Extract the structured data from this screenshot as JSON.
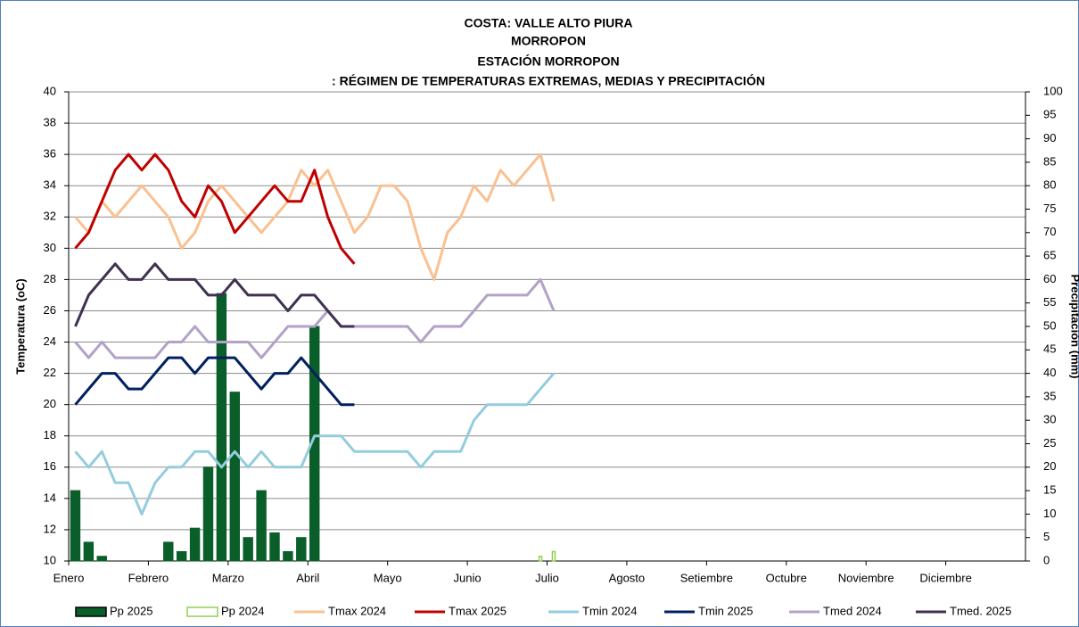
{
  "chart_data": {
    "type": "combo",
    "title": [
      "COSTA: VALLE ALTO PIURA",
      "MORROPON",
      "ESTACIÓN MORROPON",
      ": RÉGIMEN DE TEMPERATURAS EXTREMAS, MEDIAS Y PRECIPITACIÓN"
    ],
    "y_label": "Temperatura (oC)",
    "y2_label": "Precipitación (mm)",
    "categories": [
      "Enero",
      null,
      null,
      null,
      null,
      null,
      "Febrero",
      null,
      null,
      null,
      null,
      null,
      "Marzo",
      null,
      null,
      null,
      null,
      null,
      "Abril",
      null,
      null,
      null,
      null,
      null,
      "Mayo",
      null,
      null,
      null,
      null,
      null,
      "Junio",
      null,
      null,
      null,
      null,
      null,
      "Julio",
      null,
      null,
      null,
      null,
      null,
      "Agosto",
      null,
      null,
      null,
      null,
      null,
      "Setiembre",
      null,
      null,
      null,
      null,
      null,
      "Octubre",
      null,
      null,
      null,
      null,
      null,
      "Noviembre",
      null,
      null,
      null,
      null,
      null,
      "Diciembre",
      null,
      null,
      null,
      null,
      null
    ],
    "ylim": [
      10,
      40
    ],
    "yticks": [
      10,
      12,
      14,
      16,
      18,
      20,
      22,
      24,
      26,
      28,
      30,
      32,
      34,
      36,
      38,
      40
    ],
    "y2lim": [
      0,
      100
    ],
    "y2ticks": [
      0,
      5,
      10,
      15,
      20,
      25,
      30,
      35,
      40,
      45,
      50,
      55,
      60,
      65,
      70,
      75,
      80,
      85,
      90,
      95,
      100
    ],
    "grid": true,
    "series": [
      {
        "name": "Pp 2025",
        "kind": "bar",
        "axis": "y2",
        "color": "#0a5e2a",
        "values": [
          15,
          4,
          1,
          0,
          0,
          0,
          0,
          4,
          2,
          7,
          20,
          57,
          36,
          5,
          15,
          6,
          2,
          5,
          50,
          0,
          0,
          0,
          null,
          null,
          null,
          null,
          null,
          null,
          null,
          null,
          null,
          null,
          null,
          null,
          null,
          null,
          null,
          null,
          null,
          null,
          null,
          null,
          null,
          null,
          null,
          null,
          null,
          null,
          null,
          null,
          null,
          null,
          null,
          null,
          null,
          null,
          null,
          null,
          null,
          null,
          null,
          null,
          null,
          null,
          null,
          null,
          null,
          null,
          null,
          null,
          null,
          null
        ]
      },
      {
        "name": "Pp 2024",
        "kind": "bar-outline",
        "axis": "y2",
        "color": "#92d050",
        "values": [
          0,
          0,
          0,
          0,
          0,
          0,
          0,
          0,
          0,
          0,
          0,
          0,
          0,
          0,
          0,
          0,
          0,
          0,
          0,
          0,
          0,
          0,
          0,
          0,
          0,
          0,
          0,
          0,
          0,
          0,
          0,
          0,
          0,
          0,
          0,
          1,
          2,
          null,
          null,
          null,
          null,
          null,
          null,
          null,
          null,
          null,
          null,
          null,
          null,
          null,
          null,
          null,
          null,
          null,
          null,
          null,
          null,
          null,
          null,
          null,
          null,
          null,
          null,
          null,
          null,
          null,
          null,
          null,
          null,
          null,
          null,
          null
        ]
      },
      {
        "name": "Tmax 2024",
        "kind": "line",
        "color": "#fac090",
        "values": [
          32,
          31,
          33,
          32,
          33,
          34,
          33,
          32,
          30,
          31,
          33,
          34,
          33,
          32,
          31,
          32,
          33,
          35,
          34,
          35,
          33,
          31,
          32,
          34,
          34,
          33,
          30,
          28,
          31,
          32,
          34,
          33,
          35,
          34,
          35,
          36,
          33,
          null,
          null,
          null,
          null,
          null,
          null,
          null,
          null,
          null,
          null,
          null,
          null,
          null,
          null,
          null,
          null,
          null,
          null,
          null,
          null,
          null,
          null,
          null,
          null,
          null,
          null,
          null,
          null,
          null,
          null,
          null,
          null,
          null,
          null,
          null
        ]
      },
      {
        "name": "Tmax 2025",
        "kind": "line",
        "color": "#c00000",
        "values": [
          30,
          31,
          33,
          35,
          36,
          35,
          36,
          35,
          33,
          32,
          34,
          33,
          31,
          32,
          33,
          34,
          33,
          33,
          35,
          32,
          30,
          29,
          null,
          null,
          null,
          null,
          null,
          null,
          null,
          null,
          null,
          null,
          null,
          null,
          null,
          null,
          null,
          null,
          null,
          null,
          null,
          null,
          null,
          null,
          null,
          null,
          null,
          null,
          null,
          null,
          null,
          null,
          null,
          null,
          null,
          null,
          null,
          null,
          null,
          null,
          null,
          null,
          null,
          null,
          null,
          null,
          null,
          null,
          null,
          null,
          null,
          null
        ]
      },
      {
        "name": "Tmin 2024",
        "kind": "line",
        "color": "#93cddd",
        "values": [
          17,
          16,
          17,
          15,
          15,
          13,
          15,
          16,
          16,
          17,
          17,
          16,
          17,
          16,
          17,
          16,
          16,
          16,
          18,
          18,
          18,
          17,
          17,
          17,
          17,
          17,
          16,
          17,
          17,
          17,
          19,
          20,
          20,
          20,
          20,
          21,
          22,
          null,
          null,
          null,
          null,
          null,
          null,
          null,
          null,
          null,
          null,
          null,
          null,
          null,
          null,
          null,
          null,
          null,
          null,
          null,
          null,
          null,
          null,
          null,
          null,
          null,
          null,
          null,
          null,
          null,
          null,
          null,
          null,
          null,
          null,
          null
        ]
      },
      {
        "name": "Tmin 2025",
        "kind": "line",
        "color": "#002060",
        "values": [
          20,
          21,
          22,
          22,
          21,
          21,
          22,
          23,
          23,
          22,
          23,
          23,
          23,
          22,
          21,
          22,
          22,
          23,
          22,
          21,
          20,
          20,
          null,
          null,
          null,
          null,
          null,
          null,
          null,
          null,
          null,
          null,
          null,
          null,
          null,
          null,
          null,
          null,
          null,
          null,
          null,
          null,
          null,
          null,
          null,
          null,
          null,
          null,
          null,
          null,
          null,
          null,
          null,
          null,
          null,
          null,
          null,
          null,
          null,
          null,
          null,
          null,
          null,
          null,
          null,
          null,
          null,
          null,
          null,
          null,
          null,
          null
        ]
      },
      {
        "name": "Tmed 2024",
        "kind": "line",
        "color": "#b3a2c7",
        "values": [
          24,
          23,
          24,
          23,
          23,
          23,
          23,
          24,
          24,
          25,
          24,
          24,
          24,
          24,
          23,
          24,
          25,
          25,
          25,
          26,
          25,
          25,
          25,
          25,
          25,
          25,
          24,
          25,
          25,
          25,
          26,
          27,
          27,
          27,
          27,
          28,
          26,
          null,
          null,
          null,
          null,
          null,
          null,
          null,
          null,
          null,
          null,
          null,
          null,
          null,
          null,
          null,
          null,
          null,
          null,
          null,
          null,
          null,
          null,
          null,
          null,
          null,
          null,
          null,
          null,
          null,
          null,
          null,
          null,
          null,
          null,
          null
        ]
      },
      {
        "name": "Tmed. 2025",
        "kind": "line",
        "color": "#403151",
        "values": [
          25,
          27,
          28,
          29,
          28,
          28,
          29,
          28,
          28,
          28,
          27,
          27,
          28,
          27,
          27,
          27,
          26,
          27,
          27,
          26,
          25,
          25,
          null,
          null,
          null,
          null,
          null,
          null,
          null,
          null,
          null,
          null,
          null,
          null,
          null,
          null,
          null,
          null,
          null,
          null,
          null,
          null,
          null,
          null,
          null,
          null,
          null,
          null,
          null,
          null,
          null,
          null,
          null,
          null,
          null,
          null,
          null,
          null,
          null,
          null,
          null,
          null,
          null,
          null,
          null,
          null,
          null,
          null,
          null,
          null,
          null,
          null
        ]
      }
    ]
  }
}
